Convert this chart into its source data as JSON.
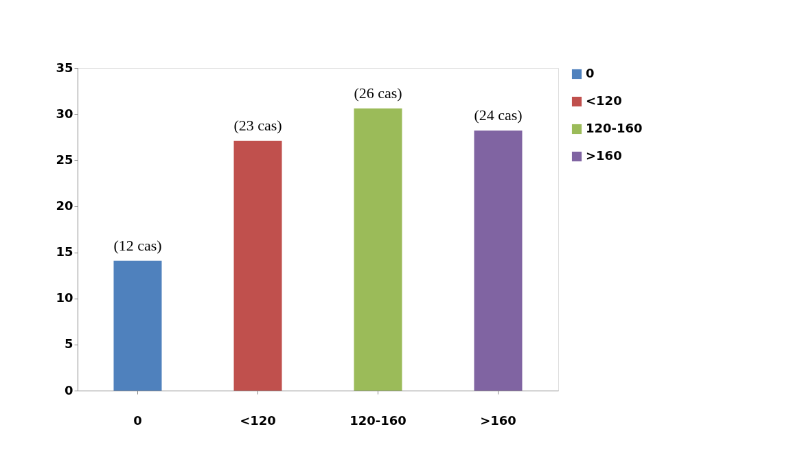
{
  "chart_data": {
    "type": "bar",
    "categories": [
      "0",
      "<120",
      "120-160",
      ">160"
    ],
    "series": [
      {
        "name": "0",
        "color": "#4f81bd",
        "values": [
          14.1,
          null,
          null,
          null
        ]
      },
      {
        "name": "<120",
        "color": "#c0504d",
        "values": [
          null,
          27.1,
          null,
          null
        ]
      },
      {
        "name": "120-160",
        "color": "#9bbb59",
        "values": [
          null,
          null,
          30.6,
          null
        ]
      },
      {
        "name": ">160",
        "color": "#8064a2",
        "values": [
          null,
          null,
          null,
          28.2
        ]
      }
    ],
    "annotations": [
      {
        "text": "(12 cas)",
        "x": "0",
        "y": 14.1
      },
      {
        "text": "(23 cas)",
        "x": "<120",
        "y": 27.1
      },
      {
        "text": "(26 cas)",
        "x": "120-160",
        "y": 30.6
      },
      {
        "text": "(24 cas)",
        "x": ">160",
        "y": 28.2
      }
    ],
    "ylim": [
      0,
      35
    ],
    "yticks": [
      0,
      5,
      10,
      15,
      20,
      25,
      30,
      35
    ],
    "grid": false,
    "legend": "right"
  }
}
